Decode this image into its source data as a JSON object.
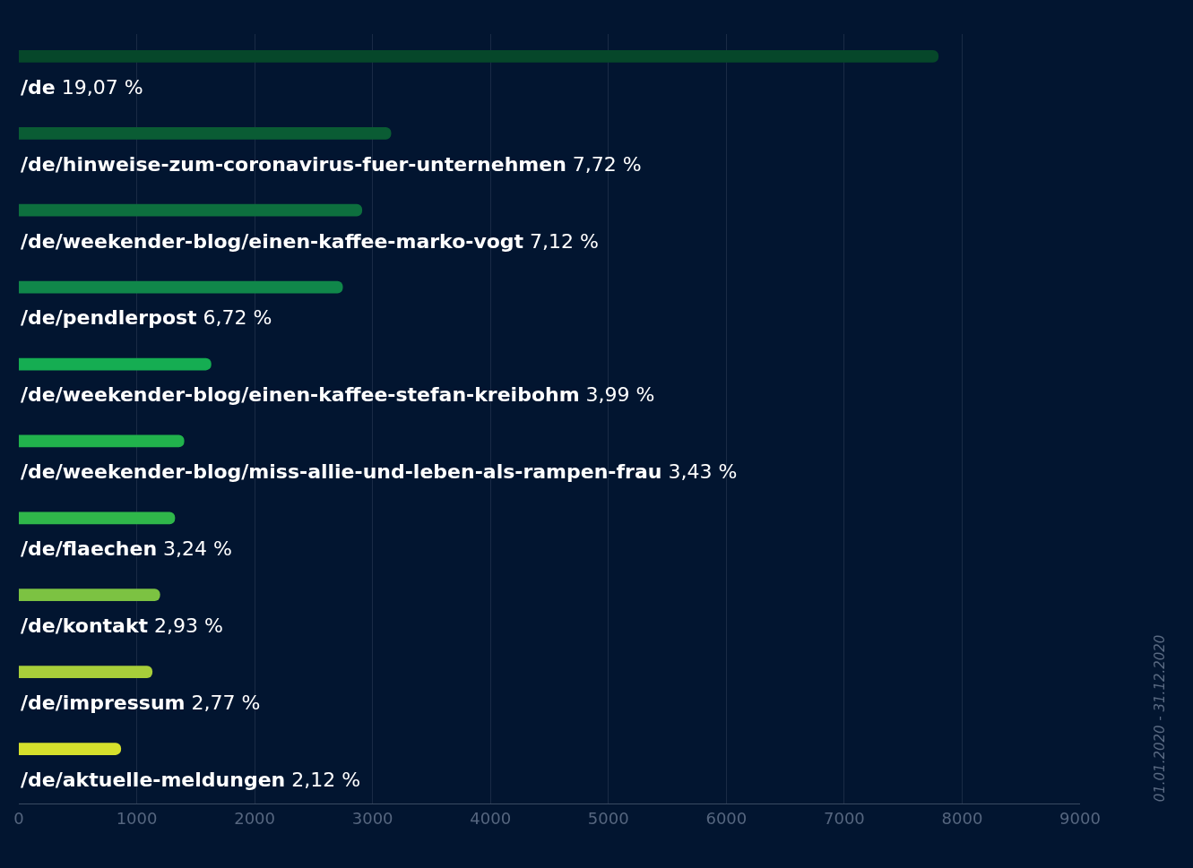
{
  "chart_data": {
    "type": "bar",
    "orientation": "horizontal",
    "categories": [
      "/de",
      "/de/hinweise-zum-coronavirus-fuer-unternehmen",
      "/de/weekender-blog/einen-kaffee-marko-vogt",
      "/de/pendlerpost",
      "/de/weekender-blog/einen-kaffee-stefan-kreibohm",
      "/de/weekender-blog/miss-allie-und-leben-als-rampen-frau",
      "/de/flaechen",
      "/de/kontakt",
      "/de/impressum",
      "/de/aktuelle-meldungen"
    ],
    "values": [
      7800,
      3158,
      2912,
      2748,
      1632,
      1403,
      1325,
      1198,
      1133,
      867
    ],
    "colors": [
      "#06472a",
      "#0a5c34",
      "#0d6f3e",
      "#10874a",
      "#15ad52",
      "#21b24c",
      "#2fb74a",
      "#7cc242",
      "#a8ce3a",
      "#d6e02c"
    ],
    "xlim": [
      0,
      9000
    ],
    "xticks": [
      0,
      1000,
      2000,
      3000,
      4000,
      5000,
      6000,
      7000,
      8000,
      9000
    ],
    "grid": "x",
    "annotations": [
      "19,07 %",
      "7,72 %",
      "7,12 %",
      "6,72 %",
      "3,99 %",
      "3,43 %",
      "3,24 %",
      "2,93 %",
      "2,77 %",
      "2,12 %",
      "01.01.2020 - 31.12.2020"
    ]
  }
}
